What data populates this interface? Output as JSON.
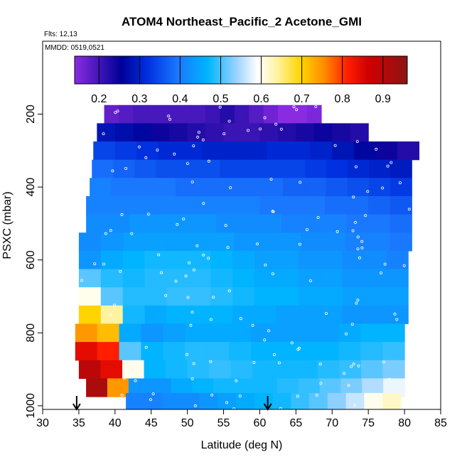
{
  "chart_data": {
    "type": "heatmap",
    "title": "ATOM4 Northeast_Pacific_2 Acetone_GMI",
    "annotations": {
      "flights": "Flts: 12,13",
      "dates": "MMDD: 0519,0521"
    },
    "xlabel": "Latitude (deg N)",
    "ylabel": "PSXC (mbar)",
    "xlim": [
      30,
      85
    ],
    "ylim": [
      1010,
      0
    ],
    "x_ticks": [
      "30",
      "35",
      "40",
      "45",
      "50",
      "55",
      "60",
      "65",
      "70",
      "75",
      "80",
      "85"
    ],
    "y_ticks": [
      "200",
      "400",
      "600",
      "800",
      "1000"
    ],
    "colorbar": {
      "range": [
        0.14,
        0.96
      ],
      "ticks": [
        "0.2",
        "0.3",
        "0.4",
        "0.5",
        "0.6",
        "0.7",
        "0.8",
        "0.9"
      ]
    },
    "arrows_latitude": [
      34.7,
      61.1
    ],
    "rows": [
      {
        "p": 200,
        "lat0": 38.5,
        "lat1": 68.5,
        "vals": [
          0.17,
          0.18,
          0.19,
          0.19,
          0.19,
          0.19,
          0.19,
          0.2,
          0.22,
          0.2,
          0.18,
          0.16,
          0.14,
          0.14,
          0.15
        ]
      },
      {
        "p": 250,
        "lat0": 37.5,
        "lat1": 75.0,
        "vals": [
          0.28,
          0.27,
          0.26,
          0.24,
          0.23,
          0.22,
          0.21,
          0.2,
          0.2,
          0.21,
          0.22,
          0.23,
          0.24,
          0.23,
          0.22
        ]
      },
      {
        "p": 300,
        "lat0": 37.0,
        "lat1": 82.0,
        "vals": [
          0.34,
          0.33,
          0.32,
          0.31,
          0.31,
          0.3,
          0.3,
          0.3,
          0.31,
          0.31,
          0.3,
          0.28,
          0.26,
          0.24,
          0.22
        ]
      },
      {
        "p": 350,
        "lat0": 36.8,
        "lat1": 81.0,
        "vals": [
          0.38,
          0.37,
          0.36,
          0.35,
          0.35,
          0.35,
          0.34,
          0.34,
          0.34,
          0.34,
          0.33,
          0.32,
          0.31,
          0.3,
          0.29
        ]
      },
      {
        "p": 400,
        "lat0": 36.5,
        "lat1": 81.0,
        "vals": [
          0.4,
          0.39,
          0.39,
          0.39,
          0.38,
          0.38,
          0.38,
          0.38,
          0.38,
          0.37,
          0.37,
          0.36,
          0.35,
          0.34,
          0.33
        ]
      },
      {
        "p": 450,
        "lat0": 36.0,
        "lat1": 81.0,
        "vals": [
          0.4,
          0.4,
          0.4,
          0.4,
          0.4,
          0.4,
          0.4,
          0.4,
          0.39,
          0.39,
          0.39,
          0.38,
          0.38,
          0.37,
          0.36
        ]
      },
      {
        "p": 500,
        "lat0": 36.0,
        "lat1": 81.0,
        "vals": [
          0.41,
          0.41,
          0.42,
          0.42,
          0.42,
          0.42,
          0.41,
          0.41,
          0.41,
          0.4,
          0.4,
          0.4,
          0.39,
          0.39,
          0.38
        ]
      },
      {
        "p": 550,
        "lat0": 35.0,
        "lat1": 81.0,
        "vals": [
          0.41,
          0.42,
          0.43,
          0.43,
          0.43,
          0.43,
          0.43,
          0.42,
          0.42,
          0.42,
          0.41,
          0.41,
          0.4,
          0.4,
          0.39
        ]
      },
      {
        "p": 600,
        "lat0": 35.0,
        "lat1": 80.5,
        "vals": [
          0.42,
          0.44,
          0.45,
          0.46,
          0.46,
          0.46,
          0.45,
          0.44,
          0.43,
          0.43,
          0.42,
          0.42,
          0.41,
          0.41,
          0.4
        ]
      },
      {
        "p": 650,
        "lat0": 35.0,
        "lat1": 80.5,
        "vals": [
          0.5,
          0.47,
          0.46,
          0.47,
          0.47,
          0.47,
          0.46,
          0.45,
          0.44,
          0.44,
          0.43,
          0.43,
          0.42,
          0.42,
          0.42
        ]
      },
      {
        "p": 700,
        "lat0": 35.0,
        "lat1": 80.5,
        "vals": [
          0.6,
          0.5,
          0.47,
          0.47,
          0.48,
          0.48,
          0.47,
          0.46,
          0.45,
          0.45,
          0.44,
          0.44,
          0.43,
          0.43,
          0.43
        ]
      },
      {
        "p": 750,
        "lat0": 35.0,
        "lat1": 80.5,
        "vals": [
          0.7,
          0.64,
          0.46,
          0.44,
          0.45,
          0.45,
          0.45,
          0.44,
          0.44,
          0.43,
          0.43,
          0.43,
          0.42,
          0.42,
          0.42
        ]
      },
      {
        "p": 800,
        "lat0": 34.5,
        "lat1": 80.0,
        "vals": [
          0.75,
          0.72,
          0.44,
          0.42,
          0.43,
          0.44,
          0.44,
          0.44,
          0.43,
          0.43,
          0.43,
          0.43,
          0.44,
          0.45,
          0.45
        ]
      },
      {
        "p": 850,
        "lat0": 34.5,
        "lat1": 80.0,
        "vals": [
          0.85,
          0.82,
          0.5,
          0.45,
          0.46,
          0.47,
          0.47,
          0.46,
          0.45,
          0.45,
          0.45,
          0.45,
          0.46,
          0.47,
          0.48
        ]
      },
      {
        "p": 900,
        "lat0": 35.0,
        "lat1": 80.0,
        "vals": [
          0.9,
          0.85,
          0.6,
          0.45,
          0.46,
          0.47,
          0.48,
          0.47,
          0.46,
          0.46,
          0.46,
          0.47,
          0.48,
          0.5,
          0.52
        ]
      },
      {
        "p": 950,
        "lat0": 36.0,
        "lat1": 80.0,
        "vals": [
          0.92,
          0.75,
          0.42,
          0.42,
          0.44,
          0.45,
          0.46,
          0.46,
          0.46,
          0.47,
          0.48,
          0.5,
          0.52,
          0.55,
          0.58
        ]
      },
      {
        "p": 990,
        "lat0": 41.5,
        "lat1": 79.5,
        "vals": [
          0.4,
          0.4,
          0.41,
          0.41,
          0.42,
          0.43,
          0.44,
          0.45,
          0.46,
          0.48,
          0.5,
          0.53,
          0.56,
          0.6,
          0.62
        ]
      }
    ]
  }
}
